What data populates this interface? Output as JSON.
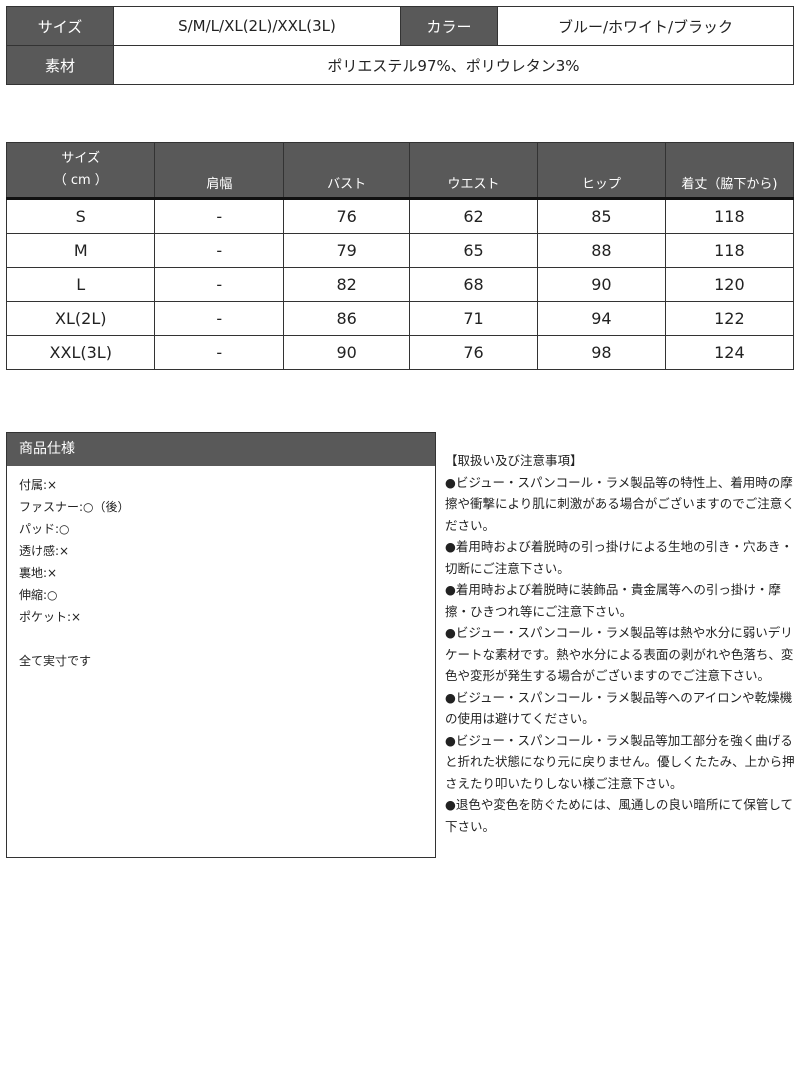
{
  "summary": {
    "size_label": "サイズ",
    "size_value": "S/M/L/XL(2L)/XXL(3L)",
    "color_label": "カラー",
    "color_value": "ブルー/ホワイト/ブラック",
    "material_label": "素材",
    "material_value": "ポリエステル97%、ポリウレタン3%"
  },
  "size_table": {
    "headers": [
      "サイズ\n（ cm ）",
      "肩幅",
      "バスト",
      "ウエスト",
      "ヒップ",
      "着丈（脇下から)"
    ],
    "rows": [
      [
        "S",
        "-",
        "76",
        "62",
        "85",
        "118"
      ],
      [
        "M",
        "-",
        "79",
        "65",
        "88",
        "118"
      ],
      [
        "L",
        "-",
        "82",
        "68",
        "90",
        "120"
      ],
      [
        "XL(2L)",
        "-",
        "86",
        "71",
        "94",
        "122"
      ],
      [
        "XXL(3L)",
        "-",
        "90",
        "76",
        "98",
        "124"
      ]
    ]
  },
  "spec": {
    "title": "商品仕様",
    "items": [
      "付属:×",
      "ファスナー:○（後）",
      "パッド:○",
      "透け感:×",
      "裏地:×",
      "伸縮:○",
      "ポケット:×"
    ],
    "note": "全て実寸です"
  },
  "notes": {
    "title": "【取扱い及び注意事項】",
    "items": [
      "●ビジュー・スパンコール・ラメ製品等の特性上、着用時の摩擦や衝撃により肌に刺激がある場合がございますのでご注意ください。",
      "●着用時および着脱時の引っ掛けによる生地の引き・穴あき・切断にご注意下さい。",
      "●着用時および着脱時に装飾品・貴金属等への引っ掛け・摩擦・ひきつれ等にご注意下さい。",
      "●ビジュー・スパンコール・ラメ製品等は熱や水分に弱いデリケートな素材です。熱や水分による表面の剥がれや色落ち、変色や変形が発生する場合がございますのでご注意下さい。",
      "●ビジュー・スパンコール・ラメ製品等へのアイロンや乾燥機の使用は避けてください。",
      "●ビジュー・スパンコール・ラメ製品等加工部分を強く曲げると折れた状態になり元に戻りません。優しくたたみ、上から押さえたり叩いたりしない様ご注意下さい。",
      "●退色や変色を防ぐためには、風通しの良い暗所にて保管して下さい。"
    ]
  }
}
